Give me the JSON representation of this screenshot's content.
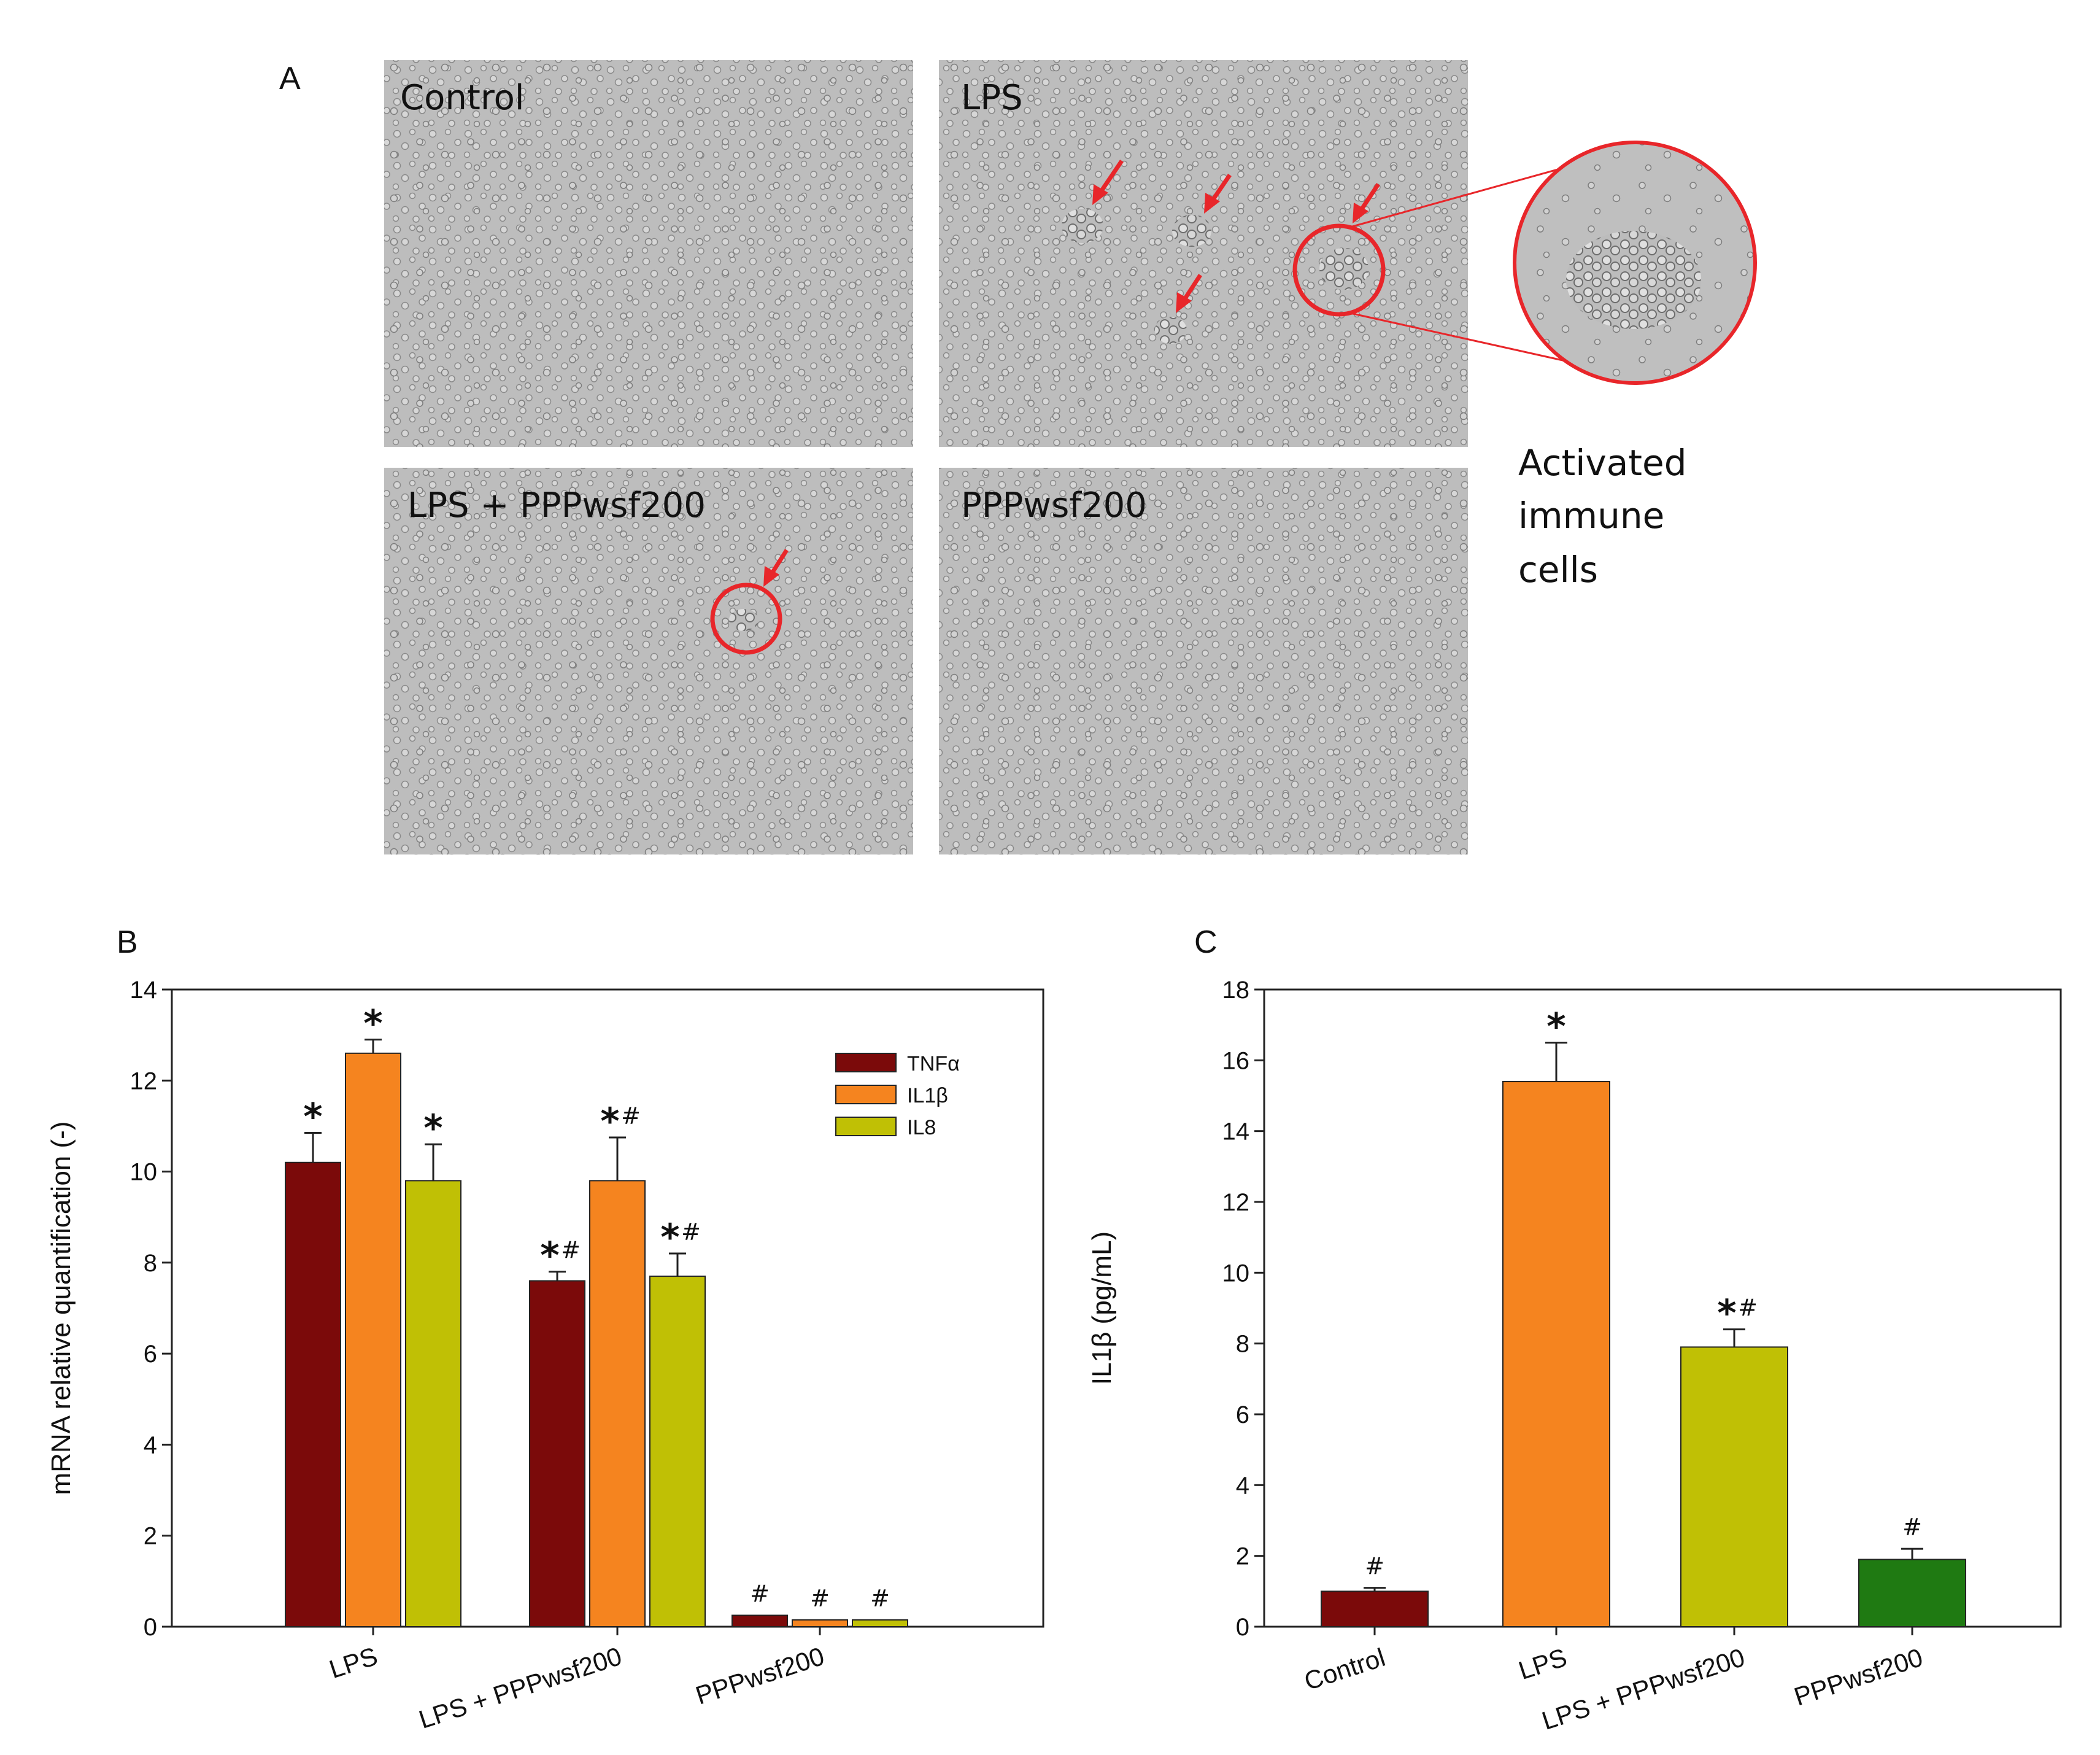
{
  "panelA": {
    "letter": "A",
    "photos": [
      {
        "label": "Control"
      },
      {
        "label": "LPS"
      },
      {
        "label": "LPS + PPPwsf200"
      },
      {
        "label": "PPPwsf200"
      }
    ],
    "callout_lines": [
      "Activated",
      "immune",
      "cells"
    ],
    "annotation_color": "#e8262a"
  },
  "chart_data": [
    {
      "type": "bar",
      "panel": "B",
      "title": "",
      "xlabel": "",
      "ylabel": "mRNA relative quantification (-)",
      "ylim": [
        0,
        14
      ],
      "yticks": [
        "0",
        "2",
        "4",
        "6",
        "8",
        "10",
        "12",
        "14"
      ],
      "categories": [
        "LPS",
        "LPS + PPPwsf200",
        "PPPwsf200"
      ],
      "legend_position": "top-right",
      "series": [
        {
          "name": "TNFα",
          "color": "#7b0a0a",
          "values": [
            10.2,
            7.6,
            0.25
          ],
          "errors": [
            0.65,
            0.2,
            0.0
          ],
          "sig": [
            "*",
            "*#",
            "#"
          ]
        },
        {
          "name": "IL1β",
          "color": "#f5841f",
          "values": [
            12.6,
            9.8,
            0.15
          ],
          "errors": [
            0.3,
            0.95,
            0.0
          ],
          "sig": [
            "*",
            "*#",
            "#"
          ]
        },
        {
          "name": "IL8",
          "color": "#c0c005",
          "values": [
            9.8,
            7.7,
            0.15
          ],
          "errors": [
            0.8,
            0.5,
            0.0
          ],
          "sig": [
            "*",
            "*#",
            "#"
          ]
        }
      ]
    },
    {
      "type": "bar",
      "panel": "C",
      "title": "",
      "xlabel": "",
      "ylabel": "IL1β (pg/mL)",
      "ylim": [
        0,
        18
      ],
      "yticks": [
        "0",
        "2",
        "4",
        "6",
        "8",
        "10",
        "12",
        "14",
        "16",
        "18"
      ],
      "categories": [
        "Control",
        "LPS",
        "LPS + PPPwsf200",
        "PPPwsf200"
      ],
      "values": [
        1.0,
        15.4,
        7.9,
        1.9
      ],
      "errors": [
        0.1,
        1.1,
        0.5,
        0.3
      ],
      "colors": [
        "#7b0a0a",
        "#f5841f",
        "#c0c005",
        "#1f7a12"
      ],
      "sig": [
        "#",
        "*",
        "*#",
        "#"
      ]
    }
  ]
}
